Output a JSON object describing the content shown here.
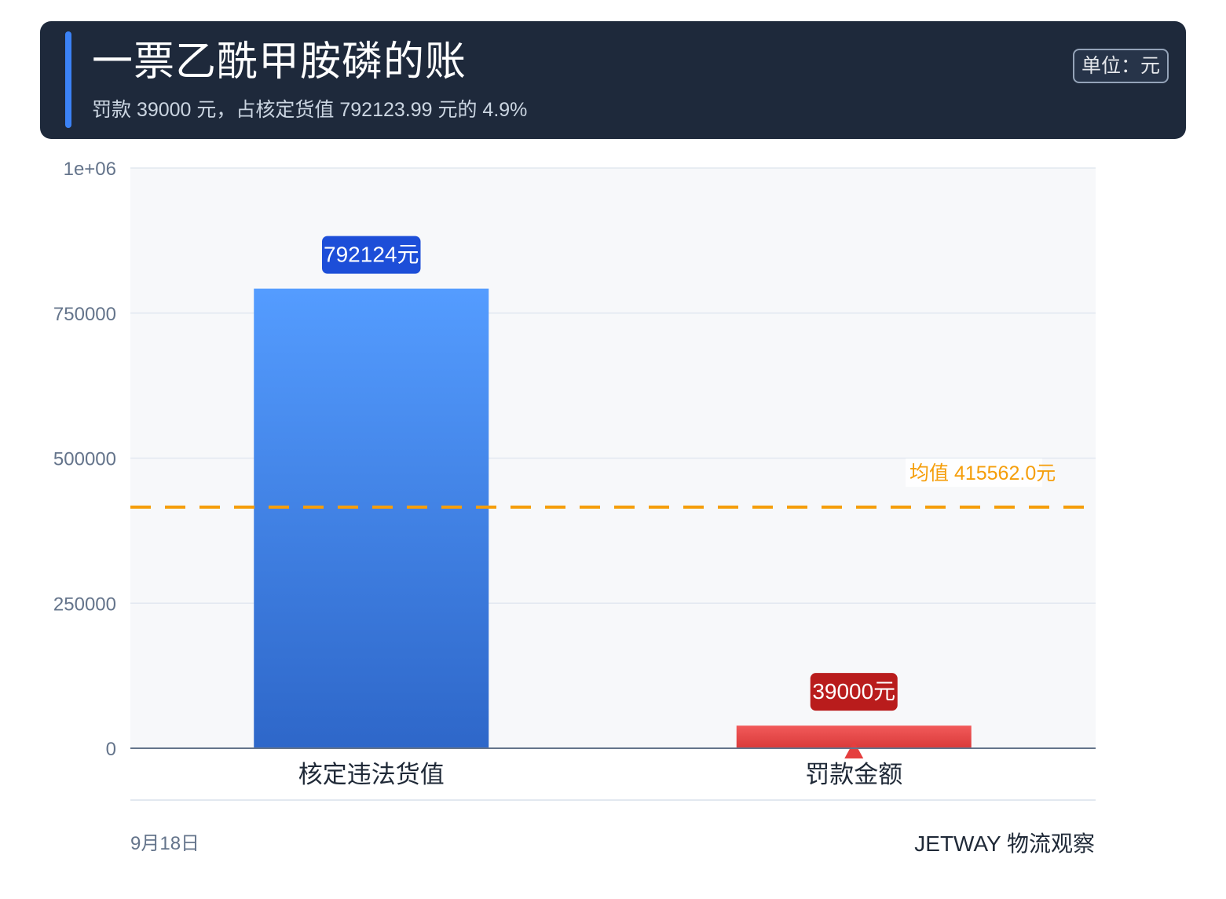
{
  "header": {
    "title": "一票乙酰甲胺磷的账",
    "subtitle": "罚款 39000 元，占核定货值 792123.99 元的 4.9%",
    "unit": "单位：元"
  },
  "footer": {
    "date": "9月18日",
    "source": "JETWAY 物流观察"
  },
  "chart_data": {
    "type": "bar",
    "categories": [
      "核定违法货值",
      "罚款金额"
    ],
    "values": [
      792123.99,
      39000
    ],
    "value_labels": [
      "792124元",
      "39000元"
    ],
    "ylim": [
      0,
      1000000
    ],
    "yticks": [
      0,
      250000,
      500000,
      750000,
      1000000
    ],
    "ytick_labels": [
      "0",
      "250000",
      "500000",
      "750000",
      "1e+06"
    ],
    "mean": {
      "value": 415562.0,
      "label": "均值 415562.0元",
      "color": "#f59e0b"
    },
    "grid": true,
    "colors": {
      "bars": [
        [
          "#549cff",
          "#2e67c9"
        ],
        [
          "#f25a5a",
          "#d93a3a"
        ]
      ],
      "label_backgrounds": [
        "#1d4ed8",
        "#b91c1c"
      ],
      "marker": "#e53e3e"
    }
  }
}
